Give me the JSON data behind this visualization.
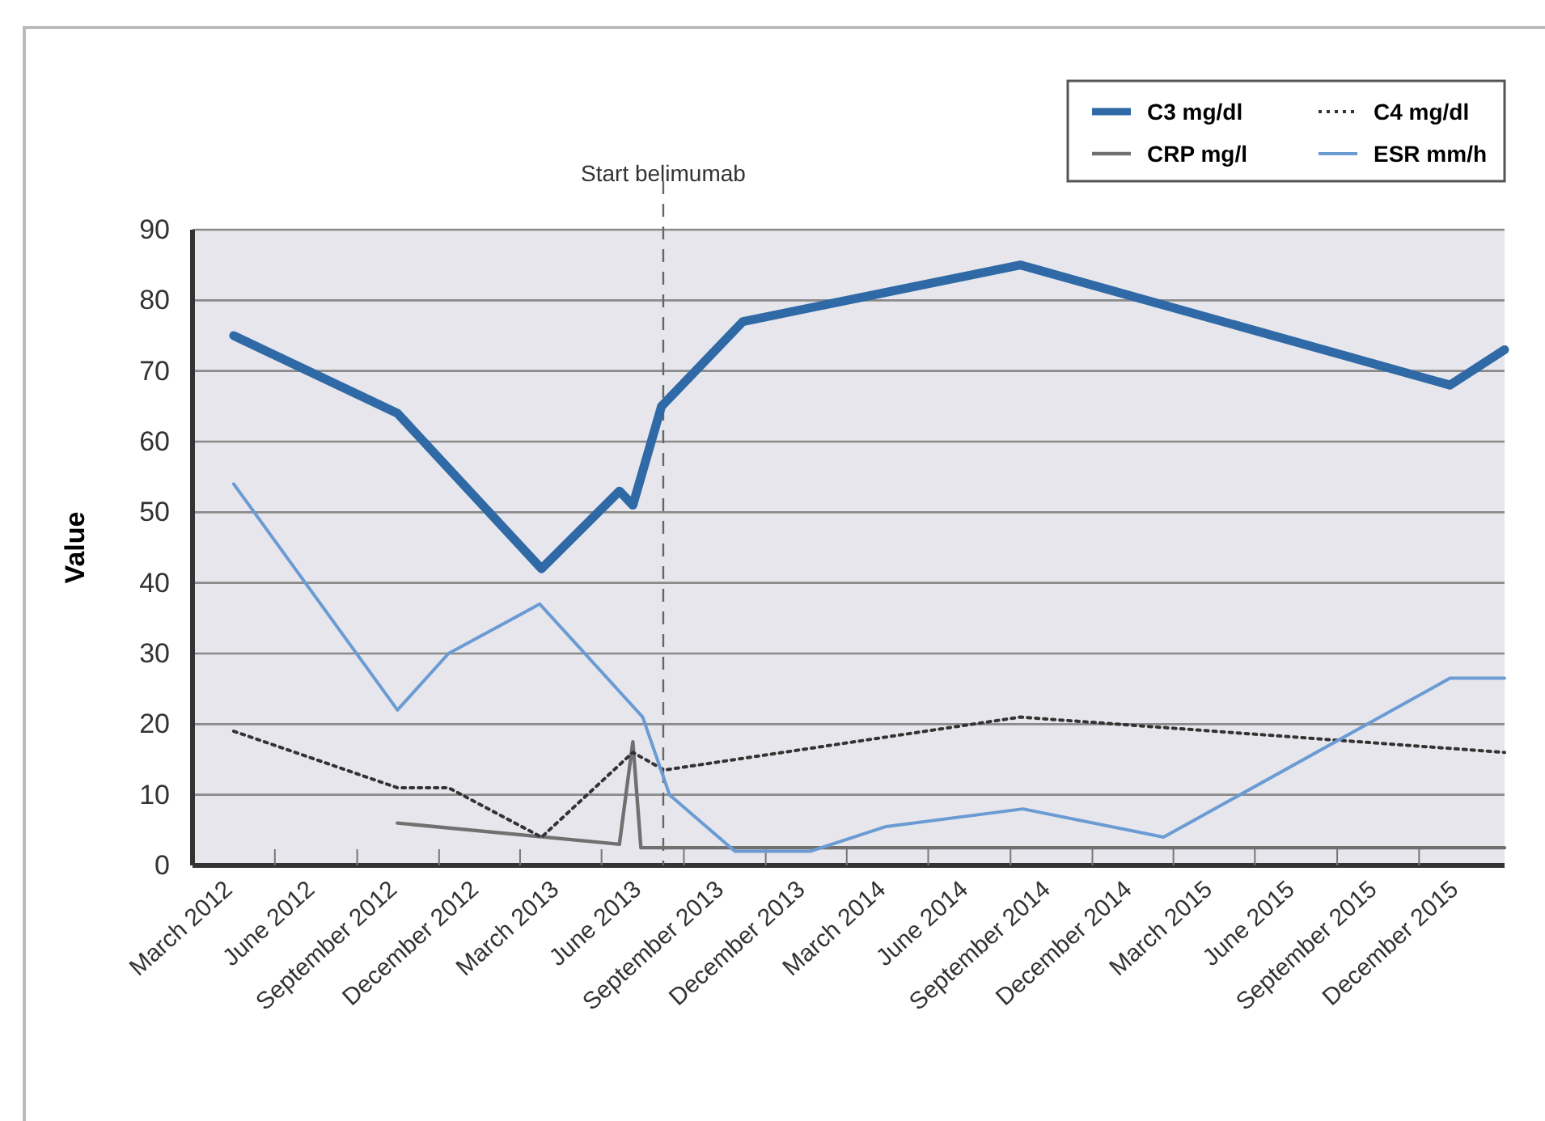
{
  "chart_data": {
    "type": "line",
    "ylabel": "Value",
    "xlim": [
      "2012-01-15",
      "2016-01-20"
    ],
    "xticks": [
      {
        "value": "2012-03-01",
        "label": "March 2012"
      },
      {
        "value": "2012-06-01",
        "label": "June 2012"
      },
      {
        "value": "2012-09-01",
        "label": "September 2012"
      },
      {
        "value": "2012-12-01",
        "label": "December 2012"
      },
      {
        "value": "2013-03-01",
        "label": "March 2013"
      },
      {
        "value": "2013-06-01",
        "label": "June 2013"
      },
      {
        "value": "2013-09-01",
        "label": "September 2013"
      },
      {
        "value": "2013-12-01",
        "label": "December 2013"
      },
      {
        "value": "2014-03-01",
        "label": "March 2014"
      },
      {
        "value": "2014-06-01",
        "label": "June 2014"
      },
      {
        "value": "2014-09-01",
        "label": "September 2014"
      },
      {
        "value": "2014-12-01",
        "label": "December 2014"
      },
      {
        "value": "2015-03-01",
        "label": "March 2015"
      },
      {
        "value": "2015-06-01",
        "label": "June 2015"
      },
      {
        "value": "2015-09-01",
        "label": "September 2015"
      },
      {
        "value": "2015-12-01",
        "label": "December 2015"
      }
    ],
    "ylim": [
      0,
      90
    ],
    "yticks": [
      0,
      10,
      20,
      30,
      40,
      50,
      60,
      70,
      80,
      90
    ],
    "grid": "y",
    "legend": "top right",
    "marker": "none",
    "series": [
      {
        "name": "C3 mg/dl",
        "color": "#2f69a6",
        "line_style": "solid",
        "x": [
          "2012-03-01",
          "2012-08-31",
          "2013-02-08",
          "2013-05-06",
          "2013-05-21",
          "2013-06-22",
          "2013-09-21",
          "2014-07-28",
          "2015-11-20",
          "2016-01-20"
        ],
        "values": [
          75,
          64,
          42,
          53,
          51,
          65,
          77,
          85,
          68,
          73
        ]
      },
      {
        "name": "C4 mg/dl",
        "color": "#333333",
        "line_style": "dotted",
        "x": [
          "2012-03-01",
          "2012-08-31",
          "2012-10-27",
          "2013-02-08",
          "2013-05-21",
          "2013-06-25",
          "2014-07-28",
          "2016-01-20"
        ],
        "values": [
          19,
          11,
          11,
          4,
          16,
          13.5,
          21,
          16
        ]
      },
      {
        "name": "CRP mg/l",
        "color": "#707070",
        "line_style": "solid",
        "x": [
          "2012-08-31",
          "2013-05-06",
          "2013-05-21",
          "2013-05-30",
          "2016-01-20"
        ],
        "values": [
          6,
          3,
          17.5,
          2.5,
          2.5
        ]
      },
      {
        "name": "ESR mm/h",
        "color": "#6a9bd3",
        "line_style": "solid",
        "x": [
          "2012-03-01",
          "2012-08-31",
          "2012-10-27",
          "2013-02-06",
          "2013-06-01",
          "2013-07-01",
          "2013-09-12",
          "2013-12-05",
          "2014-02-28",
          "2014-07-31",
          "2015-01-04",
          "2015-11-20",
          "2016-01-20"
        ],
        "values": [
          54,
          22,
          30,
          37,
          21,
          10,
          2,
          2,
          5.5,
          8,
          4,
          26.5,
          26.5
        ]
      }
    ],
    "ref_lines": [
      {
        "axis": "x",
        "value": "2013-06-24",
        "label": "Start belimumab",
        "color": "#666666",
        "line_style": "dashed"
      }
    ]
  }
}
